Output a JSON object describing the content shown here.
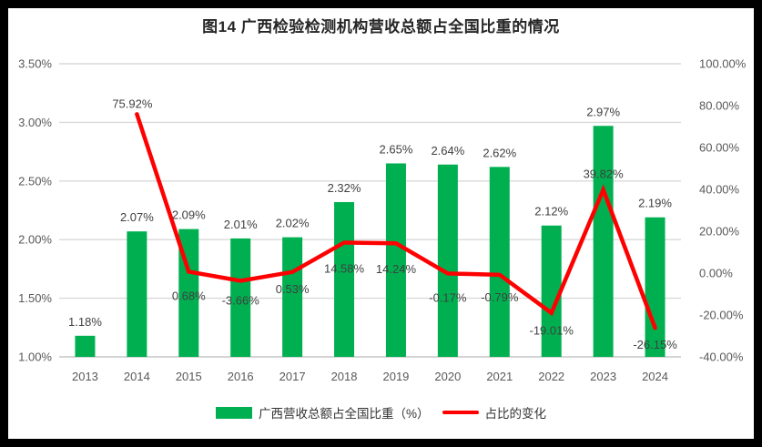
{
  "figure": {
    "title": "图14 广西检验检测机构营收总额占全国比重的情况",
    "background": "#FFFFFF",
    "border_color": "#000000"
  },
  "chart_data": {
    "type": "bar+line",
    "title": "图14 广西检验检测机构营收总额占全国比重的情况",
    "categories": [
      "2013",
      "2014",
      "2015",
      "2016",
      "2017",
      "2018",
      "2019",
      "2020",
      "2021",
      "2022",
      "2023",
      "2024"
    ],
    "series": [
      {
        "name": "广西营收总额占全国比重（%）",
        "type": "bar",
        "axis": "left",
        "color": "#00B050",
        "values": [
          1.18,
          2.07,
          2.09,
          2.01,
          2.02,
          2.32,
          2.65,
          2.64,
          2.62,
          2.12,
          2.97,
          2.19
        ],
        "labels": [
          "1.18%",
          "2.07%",
          "2.09%",
          "2.01%",
          "2.02%",
          "2.32%",
          "2.65%",
          "2.64%",
          "2.62%",
          "2.12%",
          "2.97%",
          "2.19%"
        ]
      },
      {
        "name": "占比的变化",
        "type": "line",
        "axis": "right",
        "color": "#FF0000",
        "values": [
          null,
          75.92,
          0.68,
          -3.66,
          0.53,
          14.58,
          14.24,
          -0.17,
          -0.79,
          -19.01,
          39.82,
          -26.15
        ],
        "labels": [
          null,
          "75.92%",
          "0.68%",
          "-3.66%",
          "0.53%",
          "14.58%",
          "14.24%",
          "-0.17%",
          "-0.79%",
          "-19.01%",
          "39.82%",
          "-26.15%"
        ],
        "label_dy": [
          null,
          -11,
          27,
          22,
          19,
          29,
          29,
          27,
          25,
          20,
          -17,
          19
        ]
      }
    ],
    "left_axis": {
      "min": 1.0,
      "max": 3.5,
      "tick_values": [
        3.5,
        3.0,
        2.5,
        2.0,
        1.5,
        1.0
      ],
      "tick_labels": [
        "3.50%",
        "3.00%",
        "2.50%",
        "2.00%",
        "1.50%",
        "1.00%"
      ]
    },
    "right_axis": {
      "min": -40,
      "max": 100,
      "tick_values": [
        100,
        80,
        60,
        40,
        20,
        0,
        -20,
        -40
      ],
      "tick_labels": [
        "100.00%",
        "80.00%",
        "60.00%",
        "40.00%",
        "20.00%",
        "0.00%",
        "-20.00%",
        "-40.00%"
      ]
    },
    "grid": true,
    "legend_position": "bottom"
  },
  "colors": {
    "grid": "#D9D9D9",
    "baseline": "#C6C6C6",
    "axis_text": "#595959",
    "data_label": "#404040",
    "title_text": "#262626"
  }
}
